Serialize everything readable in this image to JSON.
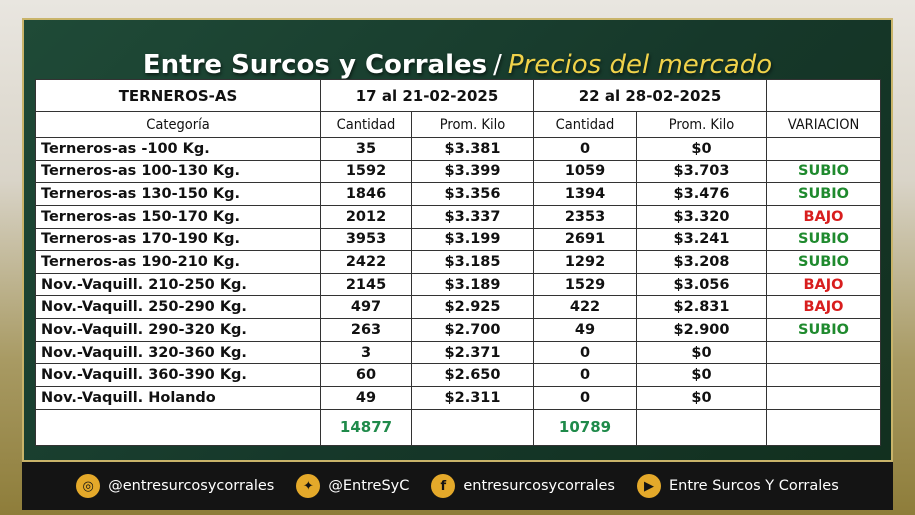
{
  "title": {
    "main": "Entre Surcos y Corrales",
    "separator": "/",
    "sub": "Precios del mercado"
  },
  "table": {
    "group_header": {
      "section": "TERNEROS-AS",
      "week1": "17 al 21-02-2025",
      "week2": "22 al 28-02-2025",
      "blank": ""
    },
    "columns": [
      "Categoría",
      "Cantidad",
      "Prom. Kilo",
      "Cantidad",
      "Prom. Kilo",
      "VARIACION"
    ],
    "rows": [
      {
        "cat": "Terneros-as -100 Kg.",
        "q1": "35",
        "p1": "$3.381",
        "q2": "0",
        "p2": "$0",
        "var": ""
      },
      {
        "cat": "Terneros-as 100-130 Kg.",
        "q1": "1592",
        "p1": "$3.399",
        "q2": "1059",
        "p2": "$3.703",
        "var": "SUBIO"
      },
      {
        "cat": "Terneros-as 130-150 Kg.",
        "q1": "1846",
        "p1": "$3.356",
        "q2": "1394",
        "p2": "$3.476",
        "var": "SUBIO"
      },
      {
        "cat": "Terneros-as 150-170 Kg.",
        "q1": "2012",
        "p1": "$3.337",
        "q2": "2353",
        "p2": "$3.320",
        "var": "BAJO"
      },
      {
        "cat": "Terneros-as 170-190 Kg.",
        "q1": "3953",
        "p1": "$3.199",
        "q2": "2691",
        "p2": "$3.241",
        "var": "SUBIO"
      },
      {
        "cat": "Terneros-as 190-210 Kg.",
        "q1": "2422",
        "p1": "$3.185",
        "q2": "1292",
        "p2": "$3.208",
        "var": "SUBIO"
      },
      {
        "cat": "Nov.-Vaquill. 210-250 Kg.",
        "q1": "2145",
        "p1": "$3.189",
        "q2": "1529",
        "p2": "$3.056",
        "var": "BAJO"
      },
      {
        "cat": "Nov.-Vaquill. 250-290 Kg.",
        "q1": "497",
        "p1": "$2.925",
        "q2": "422",
        "p2": "$2.831",
        "var": "BAJO"
      },
      {
        "cat": "Nov.-Vaquill. 290-320 Kg.",
        "q1": "263",
        "p1": "$2.700",
        "q2": "49",
        "p2": "$2.900",
        "var": "SUBIO"
      },
      {
        "cat": "Nov.-Vaquill. 320-360 Kg.",
        "q1": "3",
        "p1": "$2.371",
        "q2": "0",
        "p2": "$0",
        "var": ""
      },
      {
        "cat": "Nov.-Vaquill. 360-390 Kg.",
        "q1": "60",
        "p1": "$2.650",
        "q2": "0",
        "p2": "$0",
        "var": ""
      },
      {
        "cat": "Nov.-Vaquill. Holando",
        "q1": "49",
        "p1": "$2.311",
        "q2": "0",
        "p2": "$0",
        "var": ""
      }
    ],
    "totals": {
      "q1": "14877",
      "q2": "10789"
    }
  },
  "colors": {
    "up": "#1f8a2e",
    "down": "#d81e1e",
    "accent": "#f0d24a",
    "icon_bg": "#e4a92a"
  },
  "footer": [
    {
      "icon": "instagram-icon",
      "glyph": "◎",
      "label": "@entresurcosycorrales"
    },
    {
      "icon": "twitter-icon",
      "glyph": "✦",
      "label": "@EntreSyC"
    },
    {
      "icon": "facebook-icon",
      "glyph": "f",
      "label": "entresurcosycorrales"
    },
    {
      "icon": "youtube-icon",
      "glyph": "▶",
      "label": "Entre Surcos Y Corrales"
    }
  ]
}
